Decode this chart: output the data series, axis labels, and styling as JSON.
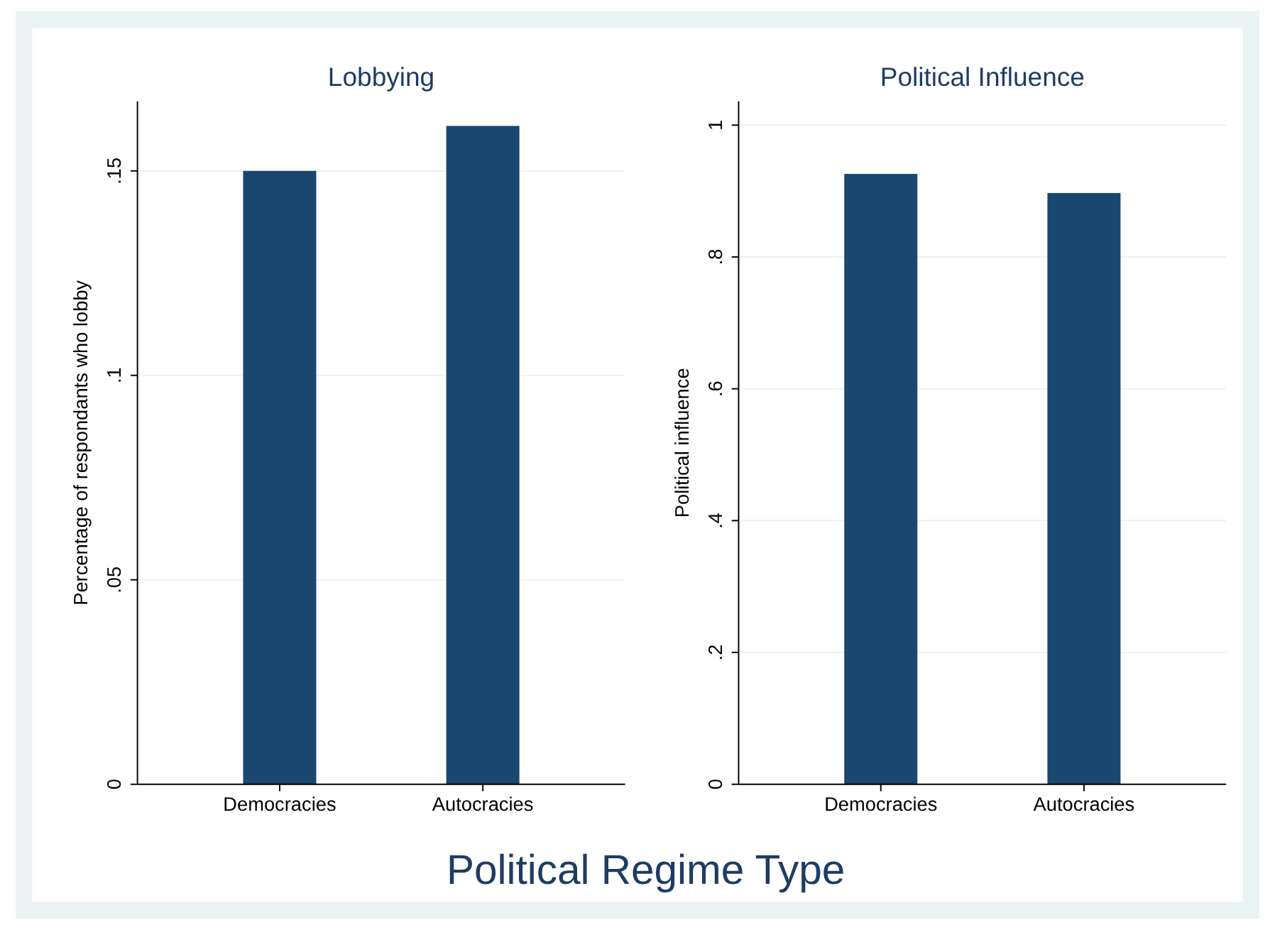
{
  "chart_data": [
    {
      "type": "bar",
      "title": "Lobbying",
      "ylabel": "Percentage of respondants who lobby",
      "categories": [
        "Democracies",
        "Autocracies"
      ],
      "values": [
        0.15,
        0.161
      ],
      "color": "#1a476f",
      "ylim": [
        0,
        0.167
      ],
      "yticks": [
        {
          "value": 0,
          "label": "0"
        },
        {
          "value": 0.05,
          "label": ".05"
        },
        {
          "value": 0.1,
          "label": ".1"
        },
        {
          "value": 0.15,
          "label": ".15"
        }
      ],
      "grid": "y",
      "annotations": [
        "Political Regime Type"
      ]
    },
    {
      "type": "bar",
      "title": "Political Influence",
      "ylabel": "Political influence",
      "categories": [
        "Democracies",
        "Autocracies"
      ],
      "values": [
        0.926,
        0.897
      ],
      "color": "#1a476f",
      "ylim": [
        0,
        1.036
      ],
      "yticks": [
        {
          "value": 0,
          "label": "0"
        },
        {
          "value": 0.2,
          "label": ".2"
        },
        {
          "value": 0.4,
          "label": ".4"
        },
        {
          "value": 0.6,
          "label": ".6"
        },
        {
          "value": 0.8,
          "label": ".8"
        },
        {
          "value": 1,
          "label": "1"
        }
      ],
      "grid": "y"
    }
  ]
}
